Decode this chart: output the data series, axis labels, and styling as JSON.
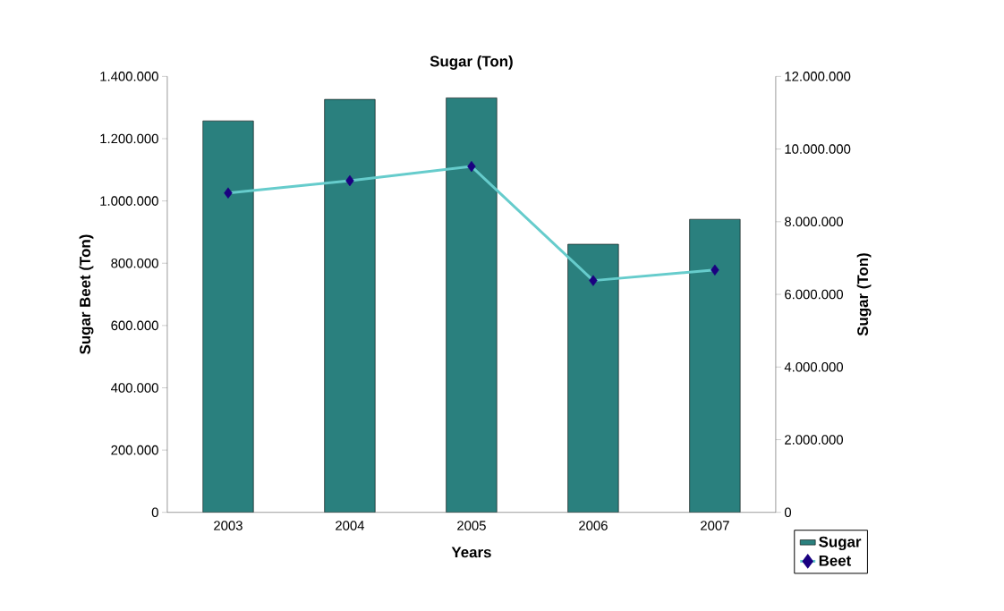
{
  "chart_data": {
    "type": "bar",
    "title": "Sugar (Ton)",
    "xlabel": "Years",
    "ylabel": "Sugar Beet (Ton)",
    "y2label": "Sugar (Ton)",
    "categories": [
      "2003",
      "2004",
      "2005",
      "2006",
      "2007"
    ],
    "series": [
      {
        "name": "Sugar",
        "color": "#2a807e",
        "values": [
          1257000,
          1326000,
          1331000,
          861000,
          941000
        ]
      },
      {
        "name": "Beet",
        "type": "line",
        "axis": "y2",
        "color": "#66cccc",
        "values": [
          8790000,
          9130000,
          9520000,
          6380000,
          6670000
        ]
      }
    ],
    "ylim": [
      0,
      1400000
    ],
    "yticks": [
      0,
      {
        "value": 200000,
        "label": "200.000"
      },
      {
        "value": 400000,
        "label": "400.000"
      },
      {
        "value": 600000,
        "label": "600.000"
      },
      {
        "value": 800000,
        "label": "800.000"
      },
      {
        "value": 1000000,
        "label": "1.000.000"
      },
      {
        "value": 1200000,
        "label": "1.200.000"
      },
      {
        "value": 1400000,
        "label": "1.400.000"
      }
    ],
    "y2lim": [
      0,
      12000000
    ],
    "y2ticks": [
      0,
      {
        "value": 2000000,
        "label": "2.000.000"
      },
      {
        "value": 4000000,
        "label": "4.000.000"
      },
      {
        "value": 6000000,
        "label": "6.000.000"
      },
      {
        "value": 8000000,
        "label": "8.000.000"
      },
      {
        "value": 10000000,
        "label": "10.000.000"
      },
      {
        "value": 12000000,
        "label": "12.000.000"
      }
    ],
    "marker": "diamond",
    "legend": "bottom right",
    "grid": false
  }
}
